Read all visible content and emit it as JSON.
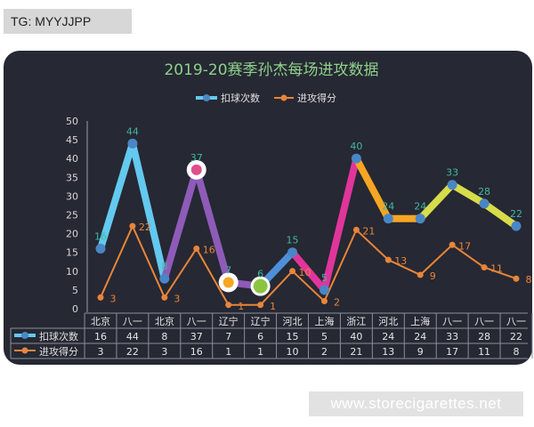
{
  "tag_text": "TG: MYYJJPP",
  "watermark": "www.storecigarettes.net",
  "chart_data": {
    "type": "line",
    "title": "2019-20赛季孙杰每场进攻数据",
    "ylim": [
      0,
      50
    ],
    "yticks": [
      0,
      5,
      10,
      15,
      20,
      25,
      30,
      35,
      40,
      45,
      50
    ],
    "categories": [
      "北京",
      "八一",
      "北京",
      "八一",
      "辽宁",
      "辽宁",
      "河北",
      "上海",
      "浙江",
      "河北",
      "上海",
      "八一",
      "八一",
      "八一"
    ],
    "series": [
      {
        "name": "扣球次数",
        "values": [
          16,
          44,
          8,
          37,
          7,
          6,
          15,
          5,
          40,
          24,
          24,
          33,
          28,
          22
        ],
        "label_color": "#3fb8a0"
      },
      {
        "name": "进攻得分",
        "values": [
          3,
          22,
          3,
          16,
          1,
          1,
          10,
          2,
          21,
          13,
          9,
          17,
          11,
          8
        ],
        "color": "#e8853a",
        "label_color": "#e8853a"
      }
    ],
    "segment_colors": [
      "#63c9ee",
      "#63c9ee",
      "#8e5bb8",
      "#8e5bb8",
      "#8e5bb8",
      "#4f8fd9",
      "#e0359a",
      "#e0359a",
      "#f6a623",
      "#f6a623",
      "#d7dc4a",
      "#d7dc4a",
      "#d7dc4a"
    ],
    "point_colors": [
      "#4a86c5",
      "#4a86c5",
      "#4a86c5",
      "#e04f8a",
      "#f5a623",
      "#8bc540",
      "#4a86c5",
      "#4a86c5",
      "#4a86c5",
      "#4a86c5",
      "#4a86c5",
      "#4a86c5",
      "#4a86c5",
      "#4a86c5"
    ],
    "highlighted_points": [
      3,
      4,
      5
    ],
    "grid": false,
    "legend_position": "top-center",
    "table_shown": true
  }
}
